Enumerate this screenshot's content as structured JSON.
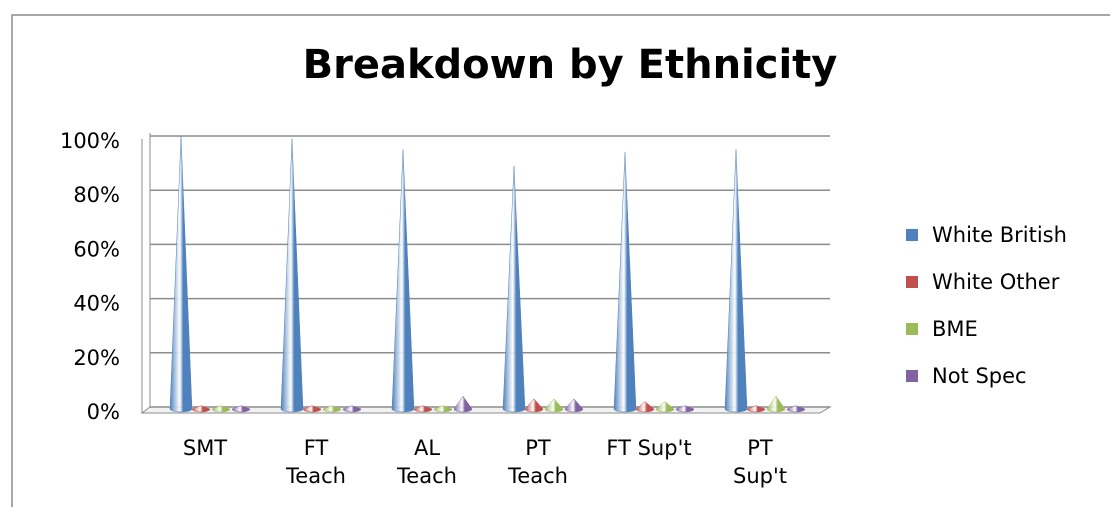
{
  "chart_data": {
    "type": "cone",
    "title": "Breakdown by Ethnicity",
    "categories": [
      "SMT",
      "FT\nTeach",
      "AL\nTeach",
      "PT\nTeach",
      "FT Sup't",
      "PT\nSup't"
    ],
    "series": [
      {
        "name": "White British",
        "color": "#4f81bd",
        "values": [
          100,
          99,
          95,
          89,
          94,
          95
        ]
      },
      {
        "name": "White Other",
        "color": "#c0504d",
        "values": [
          0.5,
          0.5,
          0.5,
          3,
          2,
          0.5
        ]
      },
      {
        "name": "BME",
        "color": "#9bbb59",
        "values": [
          0.5,
          0.5,
          0.5,
          3,
          2,
          4
        ]
      },
      {
        "name": "Not Spec",
        "color": "#8064a2",
        "values": [
          0.5,
          0.5,
          4,
          3,
          0.5,
          0.5
        ]
      }
    ],
    "ylim": [
      0,
      100
    ],
    "yticks": [
      {
        "value": 0,
        "label": "0%"
      },
      {
        "value": 20,
        "label": "20%"
      },
      {
        "value": 40,
        "label": "40%"
      },
      {
        "value": 60,
        "label": "60%"
      },
      {
        "value": 80,
        "label": "80%"
      },
      {
        "value": 100,
        "label": "100%"
      }
    ],
    "grid": true,
    "legend": "right"
  }
}
